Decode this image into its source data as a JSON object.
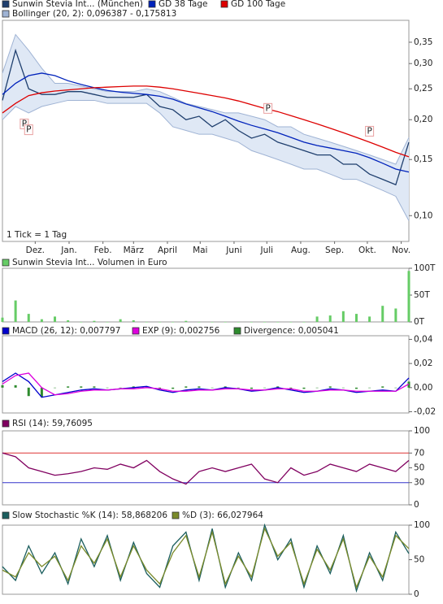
{
  "chart_data": [
    {
      "type": "line",
      "log_scale": true,
      "x_note_label": "1 Tick = 1 Tag",
      "x": [
        0,
        12,
        24,
        36,
        48,
        60,
        72,
        84,
        96,
        108,
        120,
        132,
        144,
        156,
        168,
        180,
        192,
        204,
        216,
        228,
        240,
        252,
        264,
        276,
        288,
        300,
        312,
        324,
        336,
        348,
        360,
        372
      ],
      "xlim": [
        0,
        372
      ],
      "xticks": [
        {
          "value": 30,
          "label": "Dez."
        },
        {
          "value": 61,
          "label": "Jan."
        },
        {
          "value": 92,
          "label": "Feb."
        },
        {
          "value": 120,
          "label": "März"
        },
        {
          "value": 151,
          "label": "April"
        },
        {
          "value": 181,
          "label": "Mai"
        },
        {
          "value": 212,
          "label": "Juni"
        },
        {
          "value": 242,
          "label": "Juli"
        },
        {
          "value": 273,
          "label": "Aug."
        },
        {
          "value": 304,
          "label": "Sep."
        },
        {
          "value": 334,
          "label": "Okt."
        },
        {
          "value": 365,
          "label": "Nov."
        }
      ],
      "ylim": [
        0.083,
        0.41
      ],
      "yticks": [
        {
          "value": 0.1,
          "label": "0,10"
        },
        {
          "value": 0.15,
          "label": "0,15"
        },
        {
          "value": 0.2,
          "label": "0,20"
        },
        {
          "value": 0.25,
          "label": "0,25"
        },
        {
          "value": 0.3,
          "label": "0,30"
        },
        {
          "value": 0.35,
          "label": "0,35"
        }
      ],
      "series": [
        {
          "name": "Sunwin Stevia Int... (München)",
          "style": "line",
          "color": "#1f3f6e",
          "values": [
            0.23,
            0.33,
            0.25,
            0.24,
            0.24,
            0.245,
            0.245,
            0.24,
            0.235,
            0.235,
            0.235,
            0.24,
            0.22,
            0.215,
            0.2,
            0.205,
            0.19,
            0.2,
            0.185,
            0.175,
            0.18,
            0.17,
            0.165,
            0.16,
            0.155,
            0.155,
            0.145,
            0.145,
            0.135,
            0.13,
            0.125,
            0.17
          ]
        },
        {
          "name": "GD 38 Tage",
          "style": "line",
          "color": "#0022bb",
          "values": [
            0.24,
            0.26,
            0.275,
            0.28,
            0.275,
            0.265,
            0.258,
            0.252,
            0.247,
            0.244,
            0.242,
            0.24,
            0.237,
            0.232,
            0.224,
            0.218,
            0.212,
            0.205,
            0.198,
            0.192,
            0.187,
            0.182,
            0.176,
            0.17,
            0.166,
            0.163,
            0.16,
            0.157,
            0.152,
            0.146,
            0.14,
            0.137
          ]
        },
        {
          "name": "GD 100 Tage",
          "style": "line",
          "color": "#dd0000",
          "values": [
            0.21,
            0.225,
            0.238,
            0.243,
            0.246,
            0.248,
            0.25,
            0.252,
            0.253,
            0.254,
            0.255,
            0.255,
            0.253,
            0.25,
            0.246,
            0.242,
            0.238,
            0.234,
            0.229,
            0.223,
            0.217,
            0.212,
            0.206,
            0.2,
            0.194,
            0.188,
            0.182,
            0.176,
            0.17,
            0.164,
            0.158,
            0.153
          ]
        },
        {
          "name": "Bollinger (20, 2): 0,096387 - 0,175813",
          "style": "band",
          "color": "#9fb3d4",
          "upper": [
            0.28,
            0.37,
            0.33,
            0.29,
            0.26,
            0.26,
            0.255,
            0.25,
            0.245,
            0.245,
            0.245,
            0.25,
            0.245,
            0.235,
            0.225,
            0.22,
            0.215,
            0.21,
            0.21,
            0.205,
            0.2,
            0.19,
            0.19,
            0.18,
            0.175,
            0.17,
            0.165,
            0.16,
            0.155,
            0.15,
            0.145,
            0.175813
          ],
          "lower": [
            0.2,
            0.22,
            0.21,
            0.22,
            0.225,
            0.23,
            0.23,
            0.23,
            0.225,
            0.225,
            0.225,
            0.225,
            0.21,
            0.19,
            0.185,
            0.18,
            0.18,
            0.175,
            0.17,
            0.16,
            0.155,
            0.15,
            0.145,
            0.14,
            0.14,
            0.135,
            0.13,
            0.13,
            0.125,
            0.12,
            0.115,
            0.096387
          ]
        }
      ],
      "annotations": [
        {
          "text": "P",
          "x": 20,
          "y": 0.194
        },
        {
          "text": "P",
          "x": 24,
          "y": 0.186
        },
        {
          "text": "P",
          "x": 243,
          "y": 0.217
        },
        {
          "text": "P",
          "x": 336,
          "y": 0.184
        }
      ]
    },
    {
      "type": "bar",
      "x": [
        0,
        12,
        24,
        36,
        48,
        60,
        72,
        84,
        96,
        108,
        120,
        132,
        144,
        156,
        168,
        180,
        192,
        204,
        216,
        228,
        240,
        252,
        264,
        276,
        288,
        300,
        312,
        324,
        336,
        348,
        360,
        372
      ],
      "xlim": [
        0,
        372
      ],
      "ylim": [
        0,
        100000
      ],
      "yticks": [
        {
          "value": 0,
          "label": "0T"
        },
        {
          "value": 50000,
          "label": "50T"
        },
        {
          "value": 100000,
          "label": "100T"
        }
      ],
      "series": [
        {
          "name": "Sunwin Stevia Int... Volumen in Euro",
          "style": "bar",
          "color": "#66cc66",
          "values": [
            8000,
            40000,
            15000,
            5000,
            10000,
            3000,
            0,
            2000,
            0,
            5000,
            3000,
            0,
            0,
            0,
            2000,
            0,
            0,
            0,
            0,
            0,
            0,
            0,
            0,
            0,
            10000,
            12000,
            20000,
            15000,
            10000,
            30000,
            25000,
            95000
          ]
        }
      ]
    },
    {
      "type": "line",
      "x": [
        0,
        12,
        24,
        36,
        48,
        60,
        72,
        84,
        96,
        108,
        120,
        132,
        144,
        156,
        168,
        180,
        192,
        204,
        216,
        228,
        240,
        252,
        264,
        276,
        288,
        300,
        312,
        324,
        336,
        348,
        360,
        372
      ],
      "xlim": [
        0,
        372
      ],
      "ylim": [
        -0.021,
        0.043
      ],
      "yticks": [
        {
          "value": -0.02,
          "label": "-0,02"
        },
        {
          "value": 0,
          "label": "0,00"
        },
        {
          "value": 0.02,
          "label": "0,02"
        },
        {
          "value": 0.04,
          "label": "0,04"
        }
      ],
      "series": [
        {
          "name": "MACD (26, 12): 0,007797",
          "style": "line",
          "color": "#0000cc",
          "values": [
            0.005,
            0.012,
            0.005,
            -0.008,
            -0.006,
            -0.004,
            -0.002,
            -0.001,
            -0.002,
            -0.001,
            0,
            0.001,
            -0.002,
            -0.004,
            -0.002,
            -0.001,
            -0.002,
            0,
            -0.001,
            -0.003,
            -0.002,
            0,
            -0.002,
            -0.004,
            -0.003,
            -0.001,
            -0.002,
            -0.004,
            -0.003,
            -0.002,
            -0.003,
            0.008
          ]
        },
        {
          "name": "EXP (9): 0,002756",
          "style": "line",
          "color": "#dd00dd",
          "values": [
            0.003,
            0.01,
            0.012,
            0,
            -0.006,
            -0.005,
            -0.003,
            -0.002,
            -0.002,
            -0.001,
            -0.001,
            0,
            -0.001,
            -0.003,
            -0.003,
            -0.002,
            -0.002,
            -0.001,
            -0.001,
            -0.002,
            -0.002,
            -0.001,
            -0.001,
            -0.003,
            -0.003,
            -0.002,
            -0.002,
            -0.003,
            -0.003,
            -0.003,
            -0.003,
            0.003
          ]
        },
        {
          "name": "Divergence: 0,005041",
          "style": "bar",
          "color": "#2e8b2e",
          "values": [
            0.002,
            0.002,
            -0.007,
            -0.008,
            0,
            0.001,
            0.001,
            0.001,
            0,
            0,
            0.001,
            0.001,
            -0.001,
            -0.001,
            0.001,
            0.001,
            0,
            0.001,
            0,
            -0.001,
            0,
            0.001,
            -0.001,
            -0.001,
            0,
            0.001,
            0,
            -0.001,
            0,
            0.001,
            0,
            0.005
          ]
        }
      ]
    },
    {
      "type": "line",
      "x": [
        0,
        12,
        24,
        36,
        48,
        60,
        72,
        84,
        96,
        108,
        120,
        132,
        144,
        156,
        168,
        180,
        192,
        204,
        216,
        228,
        240,
        252,
        264,
        276,
        288,
        300,
        312,
        324,
        336,
        348,
        360,
        372
      ],
      "xlim": [
        0,
        372
      ],
      "ylim": [
        0,
        100
      ],
      "yticks": [
        0,
        30,
        50,
        70,
        100
      ],
      "reference_lines": [
        {
          "value": 70,
          "color": "#dd3333"
        },
        {
          "value": 30,
          "color": "#3333cc"
        }
      ],
      "series": [
        {
          "name": "RSI (14): 59,76095",
          "style": "line",
          "color": "#800060",
          "values": [
            70,
            65,
            50,
            45,
            40,
            42,
            45,
            50,
            48,
            55,
            50,
            60,
            45,
            35,
            28,
            45,
            50,
            45,
            50,
            55,
            35,
            30,
            50,
            40,
            45,
            55,
            50,
            45,
            55,
            50,
            45,
            60
          ]
        }
      ]
    },
    {
      "type": "line",
      "x": [
        0,
        12,
        24,
        36,
        48,
        60,
        72,
        84,
        96,
        108,
        120,
        132,
        144,
        156,
        168,
        180,
        192,
        204,
        216,
        228,
        240,
        252,
        264,
        276,
        288,
        300,
        312,
        324,
        336,
        348,
        360,
        372
      ],
      "xlim": [
        0,
        372
      ],
      "ylim": [
        0,
        100
      ],
      "yticks": [
        0,
        50,
        100
      ],
      "series": [
        {
          "name": "Slow Stochastic %K (14): 58,868206",
          "style": "line",
          "color": "#1b5e5e",
          "values": [
            40,
            20,
            70,
            30,
            60,
            15,
            80,
            40,
            85,
            20,
            75,
            30,
            10,
            70,
            90,
            20,
            95,
            10,
            60,
            20,
            100,
            50,
            80,
            10,
            70,
            30,
            85,
            5,
            60,
            20,
            90,
            58.9
          ]
        },
        {
          "name": "%D (3): 66,027964",
          "style": "line",
          "color": "#7a8a2a",
          "values": [
            35,
            25,
            60,
            40,
            55,
            20,
            70,
            45,
            80,
            25,
            70,
            35,
            15,
            60,
            85,
            25,
            90,
            15,
            55,
            25,
            95,
            55,
            75,
            15,
            65,
            35,
            80,
            10,
            55,
            25,
            85,
            66
          ]
        }
      ]
    }
  ]
}
